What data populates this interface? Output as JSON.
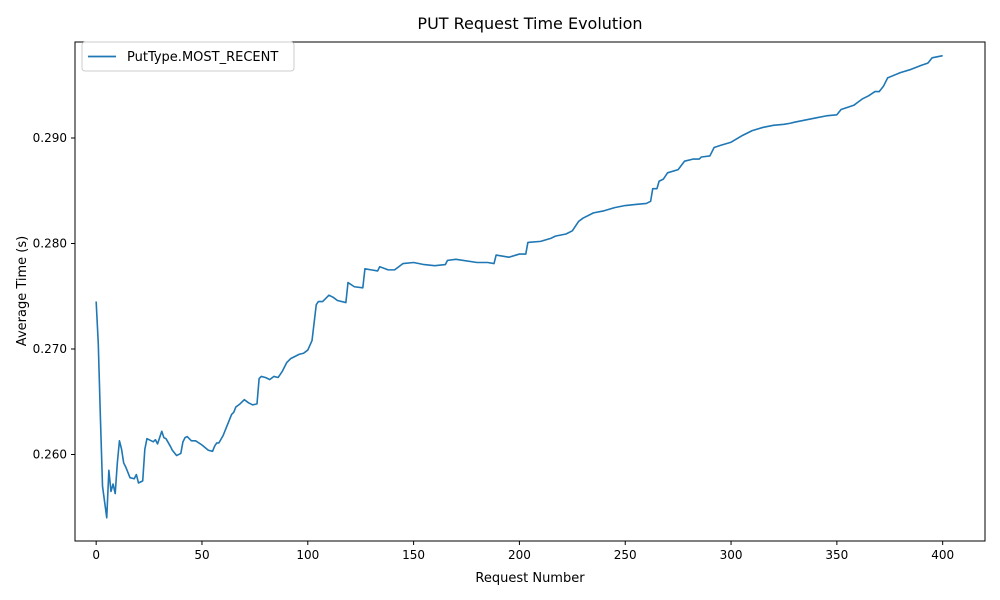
{
  "chart_data": {
    "type": "line",
    "title": "PUT Request Time Evolution",
    "xlabel": "Request Number",
    "ylabel": "Average Time (s)",
    "xlim": [
      -10,
      420
    ],
    "ylim": [
      0.2518,
      0.2991
    ],
    "xticks": [
      0,
      50,
      100,
      150,
      200,
      250,
      300,
      350,
      400
    ],
    "yticks": [
      0.26,
      0.27,
      0.28,
      0.29
    ],
    "ytick_labels": [
      "0.260",
      "0.270",
      "0.280",
      "0.290"
    ],
    "grid": false,
    "legend_position": "upper-left",
    "series": [
      {
        "name": "PutType.MOST_RECENT",
        "color": "#1f77b4",
        "x": [
          0,
          1,
          2,
          3,
          4,
          5,
          6,
          7,
          8,
          9,
          10,
          11,
          12,
          13,
          14,
          16,
          18,
          19,
          20,
          22,
          23,
          24,
          25,
          27,
          28,
          29,
          31,
          32,
          33,
          35,
          36,
          38,
          40,
          41,
          42,
          43,
          45,
          47,
          50,
          53,
          55,
          56,
          57,
          58,
          60,
          62,
          64,
          65,
          66,
          68,
          70,
          72,
          74,
          76,
          77,
          78,
          80,
          82,
          84,
          86,
          88,
          90,
          92,
          94,
          96,
          98,
          100,
          102,
          103,
          104,
          105,
          107,
          110,
          112,
          114,
          118,
          119,
          122,
          126,
          127,
          130,
          133,
          134,
          138,
          141,
          143,
          145,
          150,
          155,
          160,
          165,
          166,
          170,
          180,
          185,
          188,
          189,
          195,
          200,
          203,
          204,
          210,
          215,
          217,
          222,
          225,
          228,
          230,
          235,
          240,
          245,
          250,
          255,
          260,
          262,
          263,
          265,
          266,
          268,
          270,
          275,
          278,
          282,
          285,
          286,
          290,
          292,
          295,
          300,
          305,
          310,
          315,
          320,
          325,
          328,
          330,
          335,
          340,
          345,
          350,
          352,
          355,
          358,
          360,
          362,
          365,
          368,
          370,
          372,
          374,
          380,
          385,
          390,
          393,
          395,
          400
        ],
        "y": [
          0.2745,
          0.2705,
          0.2635,
          0.257,
          0.2555,
          0.254,
          0.2585,
          0.2565,
          0.2572,
          0.2563,
          0.2592,
          0.2613,
          0.2605,
          0.2592,
          0.2588,
          0.2578,
          0.2577,
          0.2581,
          0.2573,
          0.2575,
          0.2605,
          0.2615,
          0.2614,
          0.2612,
          0.2614,
          0.261,
          0.2622,
          0.2616,
          0.2615,
          0.2608,
          0.2604,
          0.2599,
          0.2601,
          0.2612,
          0.2616,
          0.2617,
          0.2613,
          0.2613,
          0.2609,
          0.2604,
          0.2603,
          0.2608,
          0.2611,
          0.2611,
          0.2618,
          0.2628,
          0.2638,
          0.264,
          0.2645,
          0.2648,
          0.2652,
          0.2649,
          0.2647,
          0.2648,
          0.2672,
          0.2674,
          0.2673,
          0.2671,
          0.2674,
          0.2673,
          0.2679,
          0.2687,
          0.2691,
          0.2693,
          0.2695,
          0.2696,
          0.2699,
          0.2708,
          0.2725,
          0.2742,
          0.2745,
          0.2745,
          0.2751,
          0.2749,
          0.2746,
          0.2744,
          0.2763,
          0.2759,
          0.2758,
          0.2776,
          0.2775,
          0.2774,
          0.2778,
          0.2775,
          0.2775,
          0.2778,
          0.2781,
          0.2782,
          0.278,
          0.2779,
          0.278,
          0.2784,
          0.2785,
          0.2782,
          0.2782,
          0.2781,
          0.2789,
          0.2787,
          0.279,
          0.279,
          0.2801,
          0.2802,
          0.2805,
          0.2807,
          0.2809,
          0.2812,
          0.2821,
          0.2824,
          0.2829,
          0.2831,
          0.2834,
          0.2836,
          0.2837,
          0.2838,
          0.284,
          0.2852,
          0.2852,
          0.2859,
          0.2861,
          0.2867,
          0.287,
          0.2878,
          0.288,
          0.288,
          0.2882,
          0.2883,
          0.2891,
          0.2893,
          0.2896,
          0.2902,
          0.2907,
          0.291,
          0.2912,
          0.2913,
          0.2914,
          0.2915,
          0.2917,
          0.2919,
          0.2921,
          0.2922,
          0.2927,
          0.2929,
          0.2931,
          0.2934,
          0.2937,
          0.294,
          0.2944,
          0.2944,
          0.2949,
          0.2957,
          0.2962,
          0.2965,
          0.2969,
          0.2971,
          0.2976,
          0.2978
        ]
      }
    ]
  }
}
